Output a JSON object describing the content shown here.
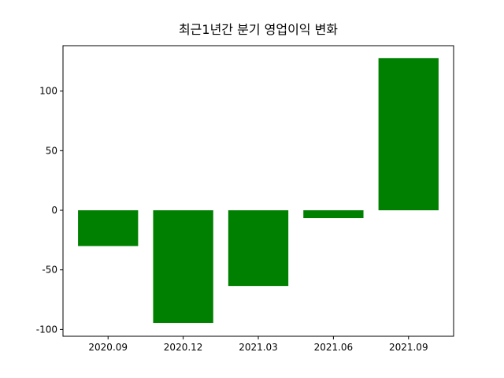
{
  "chart_data": {
    "type": "bar",
    "title": "최근1년간 분기 영업이익 변화",
    "categories": [
      "2020.09",
      "2020.12",
      "2021.03",
      "2021.06",
      "2021.09"
    ],
    "values": [
      -30,
      -94.5,
      -63.5,
      -6.6,
      127.6
    ],
    "color": "#008000",
    "ylim": [
      -105.7,
      138.1
    ],
    "yticks": [
      -100,
      -50,
      0,
      50,
      100
    ],
    "grid": false
  }
}
